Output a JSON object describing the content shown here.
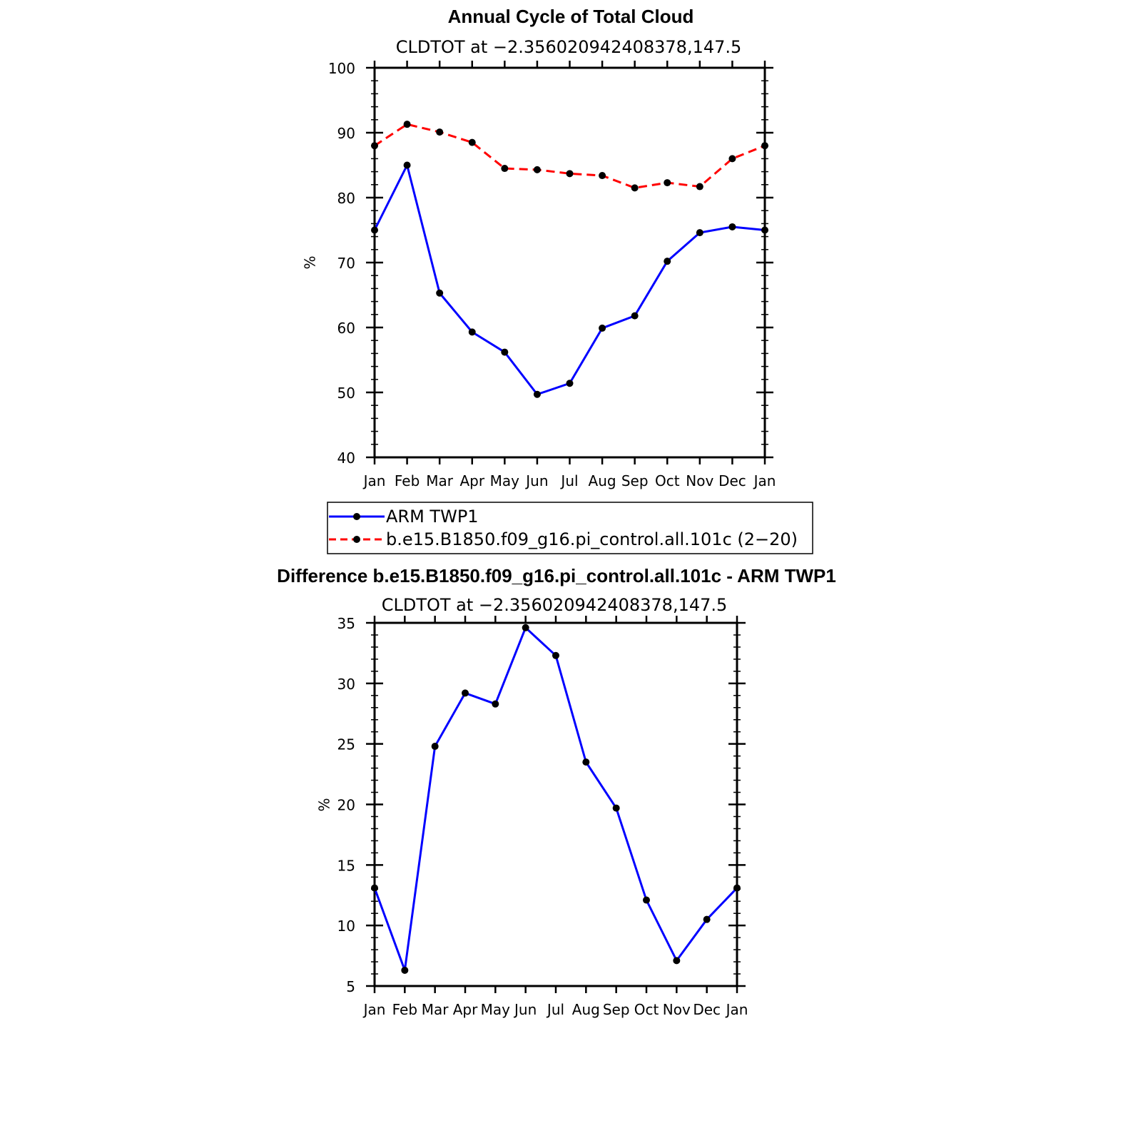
{
  "chart_data": [
    {
      "type": "line",
      "title": "Annual Cycle of Total Cloud",
      "subtitle": "CLDTOT at −2.356020942408378,147.5",
      "ylabel": "%",
      "xlabel": "",
      "ylim": [
        40,
        100
      ],
      "yticks": [
        "40",
        "50",
        "60",
        "70",
        "80",
        "90",
        "100"
      ],
      "categories": [
        "Jan",
        "Feb",
        "Mar",
        "Apr",
        "May",
        "Jun",
        "Jul",
        "Aug",
        "Sep",
        "Oct",
        "Nov",
        "Dec",
        "Jan"
      ],
      "series": [
        {
          "name": "ARM TWP1",
          "color": "#0000ff",
          "dash": "solid",
          "values": [
            75.0,
            85.0,
            65.3,
            59.3,
            56.2,
            49.7,
            51.4,
            59.9,
            61.8,
            70.2,
            74.6,
            75.5,
            75.0
          ]
        },
        {
          "name": "b.e15.B1850.f09_g16.pi_control.all.101c (2−20)",
          "color": "#ff0000",
          "dash": "dashed",
          "values": [
            88.0,
            91.3,
            90.1,
            88.5,
            84.5,
            84.3,
            83.7,
            83.4,
            81.5,
            82.3,
            81.7,
            86.0,
            88.0
          ]
        }
      ],
      "legend_position": "below"
    },
    {
      "type": "line",
      "title": "Difference b.e15.B1850.f09_g16.pi_control.all.101c - ARM TWP1",
      "subtitle": "CLDTOT at −2.356020942408378,147.5",
      "ylabel": "%",
      "xlabel": "",
      "ylim": [
        5,
        35
      ],
      "yticks": [
        "5",
        "10",
        "15",
        "20",
        "25",
        "30",
        "35"
      ],
      "categories": [
        "Jan",
        "Feb",
        "Mar",
        "Apr",
        "May",
        "Jun",
        "Jul",
        "Aug",
        "Sep",
        "Oct",
        "Nov",
        "Dec",
        "Jan"
      ],
      "series": [
        {
          "color": "#0000ff",
          "dash": "solid",
          "values": [
            13.1,
            6.3,
            24.8,
            29.2,
            28.3,
            34.6,
            32.3,
            23.5,
            19.7,
            12.1,
            7.1,
            10.5,
            13.1
          ]
        }
      ]
    }
  ]
}
